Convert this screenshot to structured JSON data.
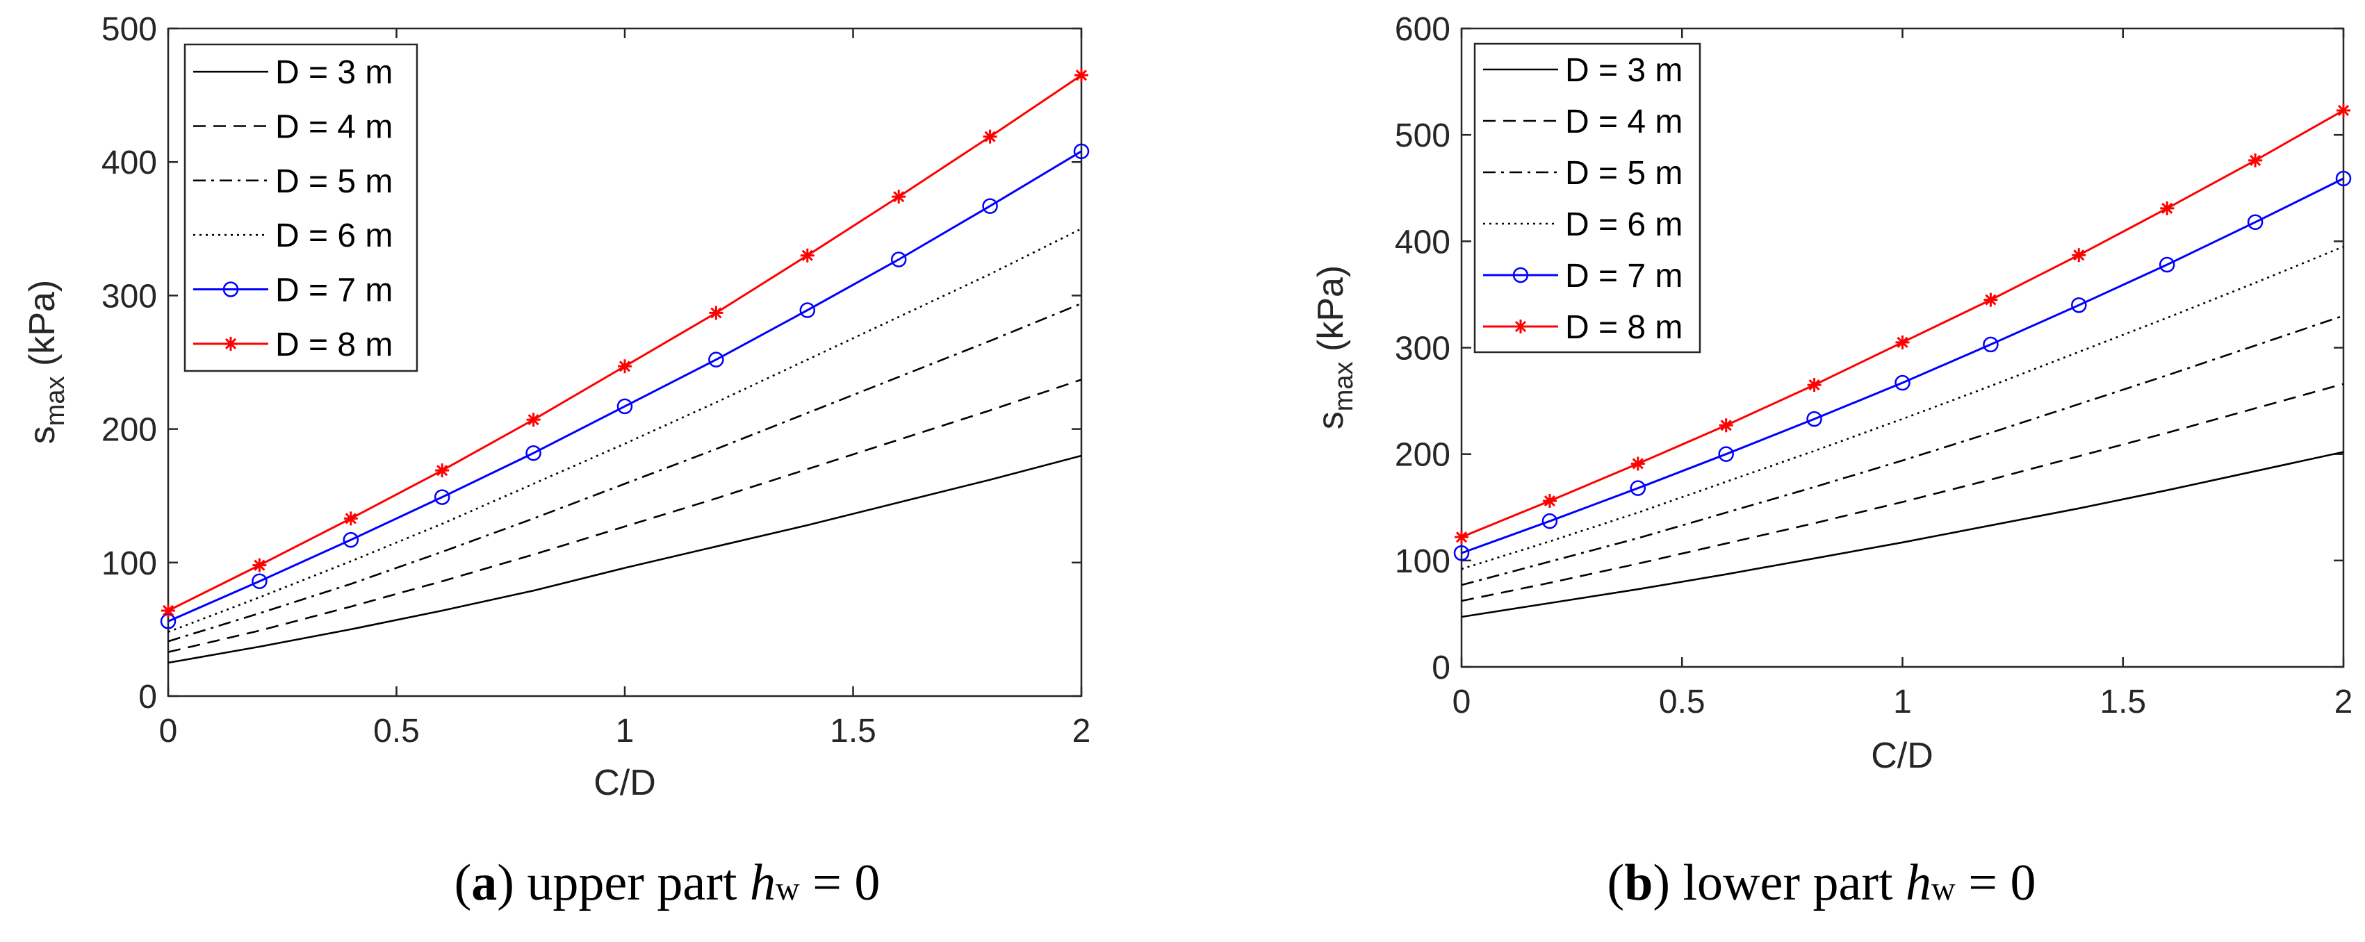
{
  "chart_data": [
    {
      "type": "line",
      "caption": {
        "letter": "a",
        "text": " upper part ",
        "var": "h",
        "sub": "w",
        "tail": " = 0"
      },
      "xlabel": "C/D",
      "ylabel": {
        "main": "s",
        "sub": "max",
        "units": " (kPa)"
      },
      "xlim": [
        0,
        2
      ],
      "ylim": [
        0,
        500
      ],
      "xticks": [
        0,
        0.5,
        1,
        1.5,
        2
      ],
      "xtick_labels": [
        "0",
        "0.5",
        "1",
        "1.5",
        "2"
      ],
      "yticks": [
        0,
        100,
        200,
        300,
        400,
        500
      ],
      "ytick_labels": [
        "0",
        "100",
        "200",
        "300",
        "400",
        "500"
      ],
      "legend_position": "top-left",
      "x": [
        0,
        0.2,
        0.4,
        0.6,
        0.8,
        1.0,
        1.2,
        1.4,
        1.6,
        1.8,
        2.0
      ],
      "series": [
        {
          "name": "D = 3 m",
          "style": "solid",
          "color": "#000000",
          "marker": "none",
          "values": [
            25,
            37,
            50,
            64,
            79,
            96,
            112,
            128,
            145,
            162,
            180
          ]
        },
        {
          "name": "D = 4 m",
          "style": "dashed",
          "color": "#000000",
          "marker": "none",
          "values": [
            33,
            49,
            67,
            86,
            106,
            127,
            148,
            170,
            192,
            214,
            237
          ]
        },
        {
          "name": "D = 5 m",
          "style": "dashdot",
          "color": "#000000",
          "marker": "none",
          "values": [
            41,
            62,
            84,
            108,
            133,
            159,
            185,
            212,
            239,
            266,
            294
          ]
        },
        {
          "name": "D = 6 m",
          "style": "dotted",
          "color": "#000000",
          "marker": "none",
          "values": [
            48,
            74,
            101,
            129,
            159,
            189,
            220,
            252,
            284,
            316,
            350
          ]
        },
        {
          "name": "D = 7 m",
          "style": "solid",
          "color": "#0000ff",
          "marker": "circle",
          "values": [
            56,
            86,
            117,
            149,
            182,
            217,
            252,
            289,
            327,
            367,
            408
          ]
        },
        {
          "name": "D = 8 m",
          "style": "solid",
          "color": "#ff0000",
          "marker": "star",
          "values": [
            64,
            98,
            133,
            169,
            207,
            247,
            287,
            330,
            374,
            419,
            465
          ]
        }
      ]
    },
    {
      "type": "line",
      "caption": {
        "letter": "b",
        "text": " lower part ",
        "var": "h",
        "sub": "w",
        "tail": " = 0"
      },
      "xlabel": "C/D",
      "ylabel": {
        "main": "s",
        "sub": "max",
        "units": " (kPa)"
      },
      "xlim": [
        0,
        2
      ],
      "ylim": [
        0,
        600
      ],
      "xticks": [
        0,
        0.5,
        1,
        1.5,
        2
      ],
      "xtick_labels": [
        "0",
        "0.5",
        "1",
        "1.5",
        "2"
      ],
      "yticks": [
        0,
        100,
        200,
        300,
        400,
        500,
        600
      ],
      "ytick_labels": [
        "0",
        "100",
        "200",
        "300",
        "400",
        "500",
        "600"
      ],
      "legend_position": "top-left",
      "x": [
        0,
        0.2,
        0.4,
        0.6,
        0.8,
        1.0,
        1.2,
        1.4,
        1.6,
        1.8,
        2.0
      ],
      "series": [
        {
          "name": "D = 3 m",
          "style": "solid",
          "color": "#000000",
          "marker": "none",
          "values": [
            47,
            60,
            73,
            87,
            102,
            117,
            133,
            149,
            166,
            184,
            202
          ]
        },
        {
          "name": "D = 4 m",
          "style": "dashed",
          "color": "#000000",
          "marker": "none",
          "values": [
            62,
            79,
            97,
            116,
            135,
            155,
            176,
            198,
            220,
            243,
            266
          ]
        },
        {
          "name": "D = 5 m",
          "style": "dashdot",
          "color": "#000000",
          "marker": "none",
          "values": [
            77,
            99,
            121,
            145,
            169,
            194,
            220,
            247,
            274,
            302,
            330
          ]
        },
        {
          "name": "D = 6 m",
          "style": "dotted",
          "color": "#000000",
          "marker": "none",
          "values": [
            92,
            118,
            145,
            174,
            203,
            233,
            264,
            296,
            328,
            361,
            395
          ]
        },
        {
          "name": "D = 7 m",
          "style": "solid",
          "color": "#0000ff",
          "marker": "circle",
          "values": [
            107,
            137,
            168,
            200,
            233,
            267,
            303,
            340,
            378,
            418,
            459
          ]
        },
        {
          "name": "D = 8 m",
          "style": "solid",
          "color": "#ff0000",
          "marker": "star",
          "values": [
            122,
            156,
            191,
            227,
            265,
            305,
            345,
            387,
            431,
            476,
            523
          ]
        }
      ]
    }
  ]
}
